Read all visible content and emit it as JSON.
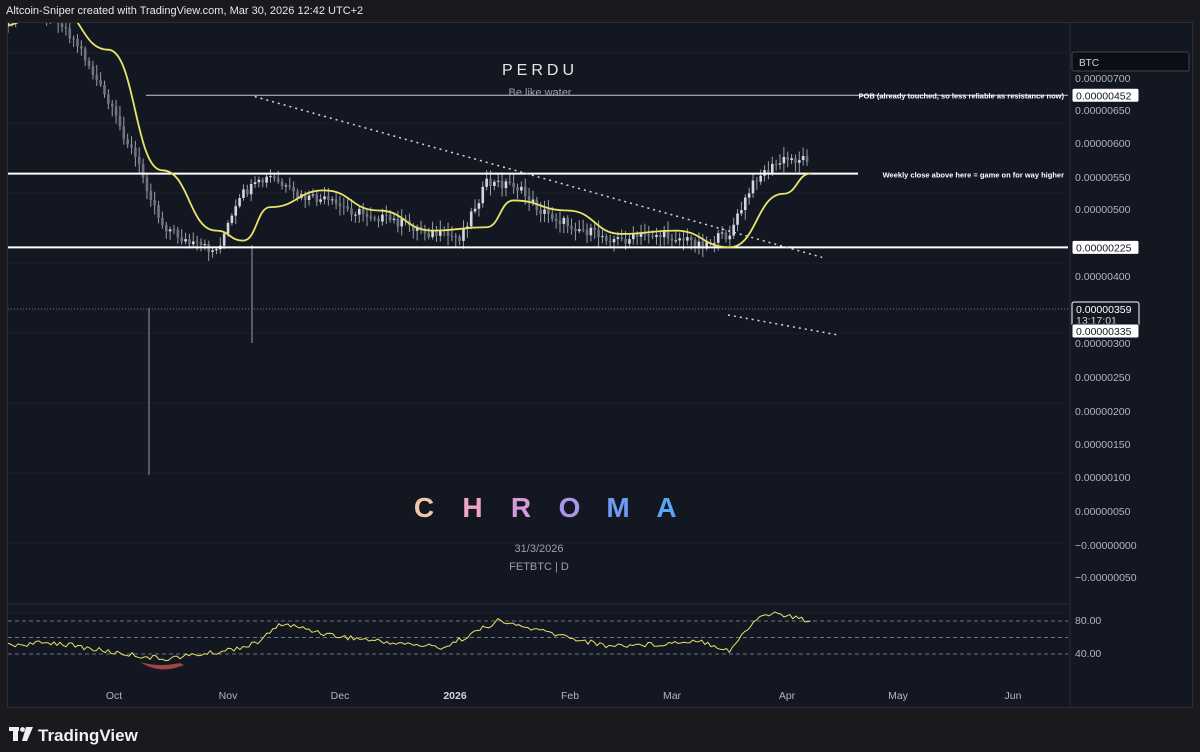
{
  "header": {
    "attribution": "Altcoin-Sniper created with TradingView.com, Mar 30, 2026 12:42 UTC+2"
  },
  "footer": {
    "brand": "TradingView"
  },
  "watermark": {
    "title": "PERDU",
    "subtitle": "Be like water",
    "chroma": [
      "C",
      "H",
      "R",
      "O",
      "M",
      "A"
    ],
    "chroma_colors": [
      "#f3c6a5",
      "#f0a6c0",
      "#d79ad8",
      "#a996e8",
      "#6f9bf0",
      "#5aa6f5"
    ],
    "date": "31/3/2026",
    "symbol": "FETBTC | D"
  },
  "price_axis": {
    "currency": "BTC",
    "ticks": [
      "0.00000700",
      "0.00000650",
      "0.00000600",
      "0.00000550",
      "0.00000500",
      "0.00000400",
      "0.00000300",
      "0.00000250",
      "0.00000200",
      "0.00000150",
      "0.00000100",
      "0.00000050",
      "−0.00000000",
      "−0.00000050"
    ],
    "labels": {
      "pob": "0.00000452",
      "last": "0.00000359",
      "countdown": "13:17:01",
      "mid": "0.00000335",
      "low": "0.00000225"
    }
  },
  "annotations": {
    "pob": "POB (already touched, so less reliable as resistance now)",
    "weekly": "Weekly close above here = game on for way higher"
  },
  "time_axis": [
    "Oct",
    "Nov",
    "Dec",
    "2026",
    "Feb",
    "Mar",
    "Apr",
    "May",
    "Jun"
  ],
  "oscillator_axis": [
    "80.00",
    "40.00"
  ],
  "colors": {
    "ma": "#e8e36a",
    "candle": "#c9ccd3",
    "rsi": "#e8e36a",
    "oversold": "#e05a4e"
  },
  "chart_data": [
    {
      "type": "candlestick",
      "symbol": "FETBTC",
      "interval": "D",
      "y_unit": "BTC",
      "ylim": [
        -6e-07,
        7e-07
      ],
      "x_range": [
        "2025-09-01",
        "2026-06-30"
      ],
      "close_series": [
        [
          "2025-09-01",
          5.55e-06
        ],
        [
          "2025-09-08",
          5.85e-06
        ],
        [
          "2025-09-15",
          5.75e-06
        ],
        [
          "2025-09-22",
          5.2e-06
        ],
        [
          "2025-09-29",
          4.4e-06
        ],
        [
          "2025-10-06",
          3.6e-06
        ],
        [
          "2025-10-13",
          2.6e-06
        ],
        [
          "2025-10-20",
          2.3e-06
        ],
        [
          "2025-10-27",
          2.2e-06
        ],
        [
          "2025-11-03",
          3.05e-06
        ],
        [
          "2025-11-10",
          3.3e-06
        ],
        [
          "2025-11-17",
          3e-06
        ],
        [
          "2025-11-24",
          2.95e-06
        ],
        [
          "2025-12-01",
          2.8e-06
        ],
        [
          "2025-12-08",
          2.7e-06
        ],
        [
          "2025-12-15",
          2.6e-06
        ],
        [
          "2025-12-22",
          2.45e-06
        ],
        [
          "2025-12-29",
          2.4e-06
        ],
        [
          "2026-01-05",
          3.2e-06
        ],
        [
          "2026-01-12",
          3.2e-06
        ],
        [
          "2026-01-19",
          2.8e-06
        ],
        [
          "2026-01-26",
          2.6e-06
        ],
        [
          "2026-02-02",
          2.45e-06
        ],
        [
          "2026-02-09",
          2.35e-06
        ],
        [
          "2026-02-16",
          2.45e-06
        ],
        [
          "2026-02-23",
          2.4e-06
        ],
        [
          "2026-03-02",
          2.3e-06
        ],
        [
          "2026-03-09",
          2.45e-06
        ],
        [
          "2026-03-16",
          3.3e-06
        ],
        [
          "2026-03-23",
          3.55e-06
        ],
        [
          "2026-03-30",
          3.59e-06
        ]
      ],
      "moving_average": [
        [
          "2025-09-01",
          5.55e-06
        ],
        [
          "2025-09-15",
          5.85e-06
        ],
        [
          "2025-09-29",
          5.2e-06
        ],
        [
          "2025-10-13",
          3.4e-06
        ],
        [
          "2025-10-27",
          2.5e-06
        ],
        [
          "2025-11-03",
          2.35e-06
        ],
        [
          "2025-11-10",
          2.85e-06
        ],
        [
          "2025-11-24",
          3.1e-06
        ],
        [
          "2025-12-08",
          2.8e-06
        ],
        [
          "2025-12-22",
          2.5e-06
        ],
        [
          "2026-01-05",
          2.55e-06
        ],
        [
          "2026-01-12",
          2.95e-06
        ],
        [
          "2026-01-26",
          2.8e-06
        ],
        [
          "2026-02-09",
          2.45e-06
        ],
        [
          "2026-02-23",
          2.5e-06
        ],
        [
          "2026-03-09",
          2.25e-06
        ],
        [
          "2026-03-23",
          3.05e-06
        ],
        [
          "2026-03-30",
          3.35e-06
        ]
      ],
      "horizontal_levels": [
        4.52e-06,
        3.35e-06,
        2.25e-06
      ],
      "trendline": [
        [
          "2025-11-06",
          4.5e-06
        ],
        [
          "2026-04-02",
          2.1e-06
        ]
      ]
    },
    {
      "type": "line",
      "name": "oscillator",
      "ylim": [
        20,
        100
      ],
      "levels": [
        70,
        50,
        30
      ],
      "series": [
        [
          "2025-09-01",
          40
        ],
        [
          "2025-09-15",
          44
        ],
        [
          "2025-09-29",
          33
        ],
        [
          "2025-10-13",
          24
        ],
        [
          "2025-10-27",
          32
        ],
        [
          "2025-11-06",
          42
        ],
        [
          "2025-11-13",
          67
        ],
        [
          "2025-11-27",
          52
        ],
        [
          "2025-12-11",
          44
        ],
        [
          "2025-12-25",
          38
        ],
        [
          "2026-01-08",
          70
        ],
        [
          "2026-01-22",
          55
        ],
        [
          "2026-02-05",
          40
        ],
        [
          "2026-02-19",
          42
        ],
        [
          "2026-03-01",
          47
        ],
        [
          "2026-03-09",
          34
        ],
        [
          "2026-03-16",
          73
        ],
        [
          "2026-03-20",
          80
        ],
        [
          "2026-03-30",
          70
        ]
      ]
    }
  ]
}
